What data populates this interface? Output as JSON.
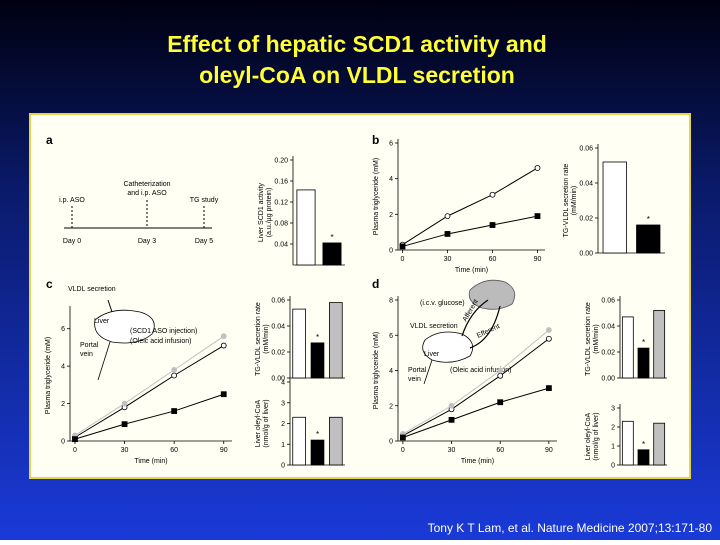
{
  "title": [
    "Effect of hepatic SCD1 activity and",
    "oleyl-CoA on VLDL secretion"
  ],
  "citation": "Tony K T Lam, et al. Nature Medicine 2007;13:171-80",
  "panels": [
    "a",
    "b",
    "c",
    "d"
  ],
  "diagram_a": {
    "labels": [
      "i.p. ASO",
      "Catheterization",
      "and i.p. ASO",
      "TG study",
      "Day 0",
      "Day 3",
      "Day 5"
    ]
  },
  "diagram_c": {
    "labels": [
      "VLDL secretion",
      "Liver",
      "(SCD1 ASO injection)",
      "(Oleic acid infusion)",
      "Portal",
      "vein"
    ]
  },
  "diagram_d": {
    "labels": [
      "(i.c.v. glucose)",
      "VLDL secretion",
      "Afferent",
      "Efferent",
      "Liver",
      "(Oleic acid infusion)",
      "Portal",
      "vein"
    ]
  },
  "chart_data": [
    {
      "type": "bar",
      "ylabel": [
        "Liver SCD1 activity",
        "(a.u./µg protein)"
      ],
      "ylim": [
        0,
        0.2
      ],
      "yticks": [
        0.04,
        0.08,
        0.12,
        0.16,
        {
          "value": 0.2,
          "label": "0.20"
        }
      ],
      "values": [
        0.143,
        0.042
      ],
      "colors": [
        "#ffffff",
        "#000000"
      ],
      "annotations": [
        null,
        "*"
      ]
    },
    {
      "type": "line",
      "ylabel": [
        "Plasma triglyceride (mM)"
      ],
      "xlabel": "Time (min)",
      "x": [
        0,
        30,
        60,
        90
      ],
      "xlim": [
        -3,
        95
      ],
      "xticks": [
        0,
        30,
        60,
        90
      ],
      "ylim": [
        0,
        6
      ],
      "yticks": [
        0,
        2,
        4,
        6
      ],
      "series": [
        {
          "color": "#ffffff",
          "values": [
            0.3,
            1.9,
            3.1,
            4.6
          ]
        },
        {
          "color": "#000000",
          "values": [
            0.2,
            0.9,
            1.4,
            1.9
          ]
        }
      ]
    },
    {
      "type": "bar",
      "ylabel": [
        "TG-VLDL secretion rate",
        "(mM/min)"
      ],
      "ylim": [
        0,
        0.06
      ],
      "yticks": [
        {
          "value": 0,
          "label": "0.00"
        },
        0.02,
        0.04,
        0.06
      ],
      "values": [
        0.052,
        0.016
      ],
      "colors": [
        "#ffffff",
        "#000000"
      ],
      "annotations": [
        null,
        "*"
      ]
    },
    {
      "type": "line",
      "ylabel": [
        "Plasma triglyceride (mM)"
      ],
      "xlabel": "Time (min)",
      "x": [
        0,
        30,
        60,
        90
      ],
      "xlim": [
        -3,
        95
      ],
      "xticks": [
        0,
        30,
        60,
        90
      ],
      "ylim": [
        0,
        7
      ],
      "yticks": [
        0,
        2,
        4,
        6
      ],
      "series": [
        {
          "color": "#ffffff",
          "values": [
            0.2,
            1.8,
            3.5,
            5.1
          ]
        },
        {
          "color": "#c0c0c0",
          "values": [
            0.3,
            2.0,
            3.8,
            5.6
          ]
        },
        {
          "color": "#000000",
          "values": [
            0.1,
            0.9,
            1.6,
            2.5
          ]
        }
      ]
    },
    {
      "type": "bar",
      "ylabel": [
        "TG-VLDL secretion rate",
        "(mM/min)"
      ],
      "ylim": [
        0,
        0.06
      ],
      "yticks": [
        {
          "value": 0,
          "label": "0.00"
        },
        0.02,
        0.04,
        0.06
      ],
      "values": [
        0.053,
        0.027,
        0.058
      ],
      "colors": [
        "#ffffff",
        "#000000",
        "#c0c0c0"
      ],
      "annotations": [
        null,
        "*",
        null
      ]
    },
    {
      "type": "bar",
      "ylabel": [
        "Liver oleyl-CoA",
        "(nmol/g of liver)"
      ],
      "ylim": [
        0,
        4
      ],
      "yticks": [
        0,
        1,
        2,
        3,
        4
      ],
      "values": [
        2.3,
        1.2,
        2.3
      ],
      "colors": [
        "#ffffff",
        "#000000",
        "#c0c0c0"
      ],
      "annotations": [
        null,
        "*",
        null
      ]
    },
    {
      "type": "line",
      "ylabel": [
        "Plasma triglyceride (mM)"
      ],
      "xlabel": "Time (min)",
      "x": [
        0,
        30,
        60,
        90
      ],
      "xlim": [
        -3,
        95
      ],
      "xticks": [
        0,
        30,
        60,
        90
      ],
      "ylim": [
        0,
        8
      ],
      "yticks": [
        0,
        2,
        4,
        6,
        8
      ],
      "series": [
        {
          "color": "#ffffff",
          "values": [
            0.3,
            1.8,
            3.7,
            5.8
          ]
        },
        {
          "color": "#c0c0c0",
          "values": [
            0.4,
            2.0,
            4.0,
            6.3
          ]
        },
        {
          "color": "#000000",
          "values": [
            0.2,
            1.2,
            2.2,
            3.0
          ]
        }
      ]
    },
    {
      "type": "bar",
      "ylabel": [
        "TG-VLDL secretion rate",
        "(mM/min)"
      ],
      "ylim": [
        0,
        0.06
      ],
      "yticks": [
        {
          "value": 0,
          "label": "0.00"
        },
        0.02,
        0.04,
        0.06
      ],
      "values": [
        0.047,
        0.023,
        0.052
      ],
      "colors": [
        "#ffffff",
        "#000000",
        "#c0c0c0"
      ],
      "annotations": [
        null,
        "*",
        null
      ]
    },
    {
      "type": "bar",
      "ylabel": [
        "Liver oleyl-CoA",
        "(nmol/g of liver)"
      ],
      "ylim": [
        0,
        3
      ],
      "yticks": [
        0,
        1,
        2,
        3
      ],
      "values": [
        2.3,
        0.8,
        2.2
      ],
      "colors": [
        "#ffffff",
        "#000000",
        "#c0c0c0"
      ],
      "annotations": [
        null,
        "*",
        null
      ]
    }
  ]
}
